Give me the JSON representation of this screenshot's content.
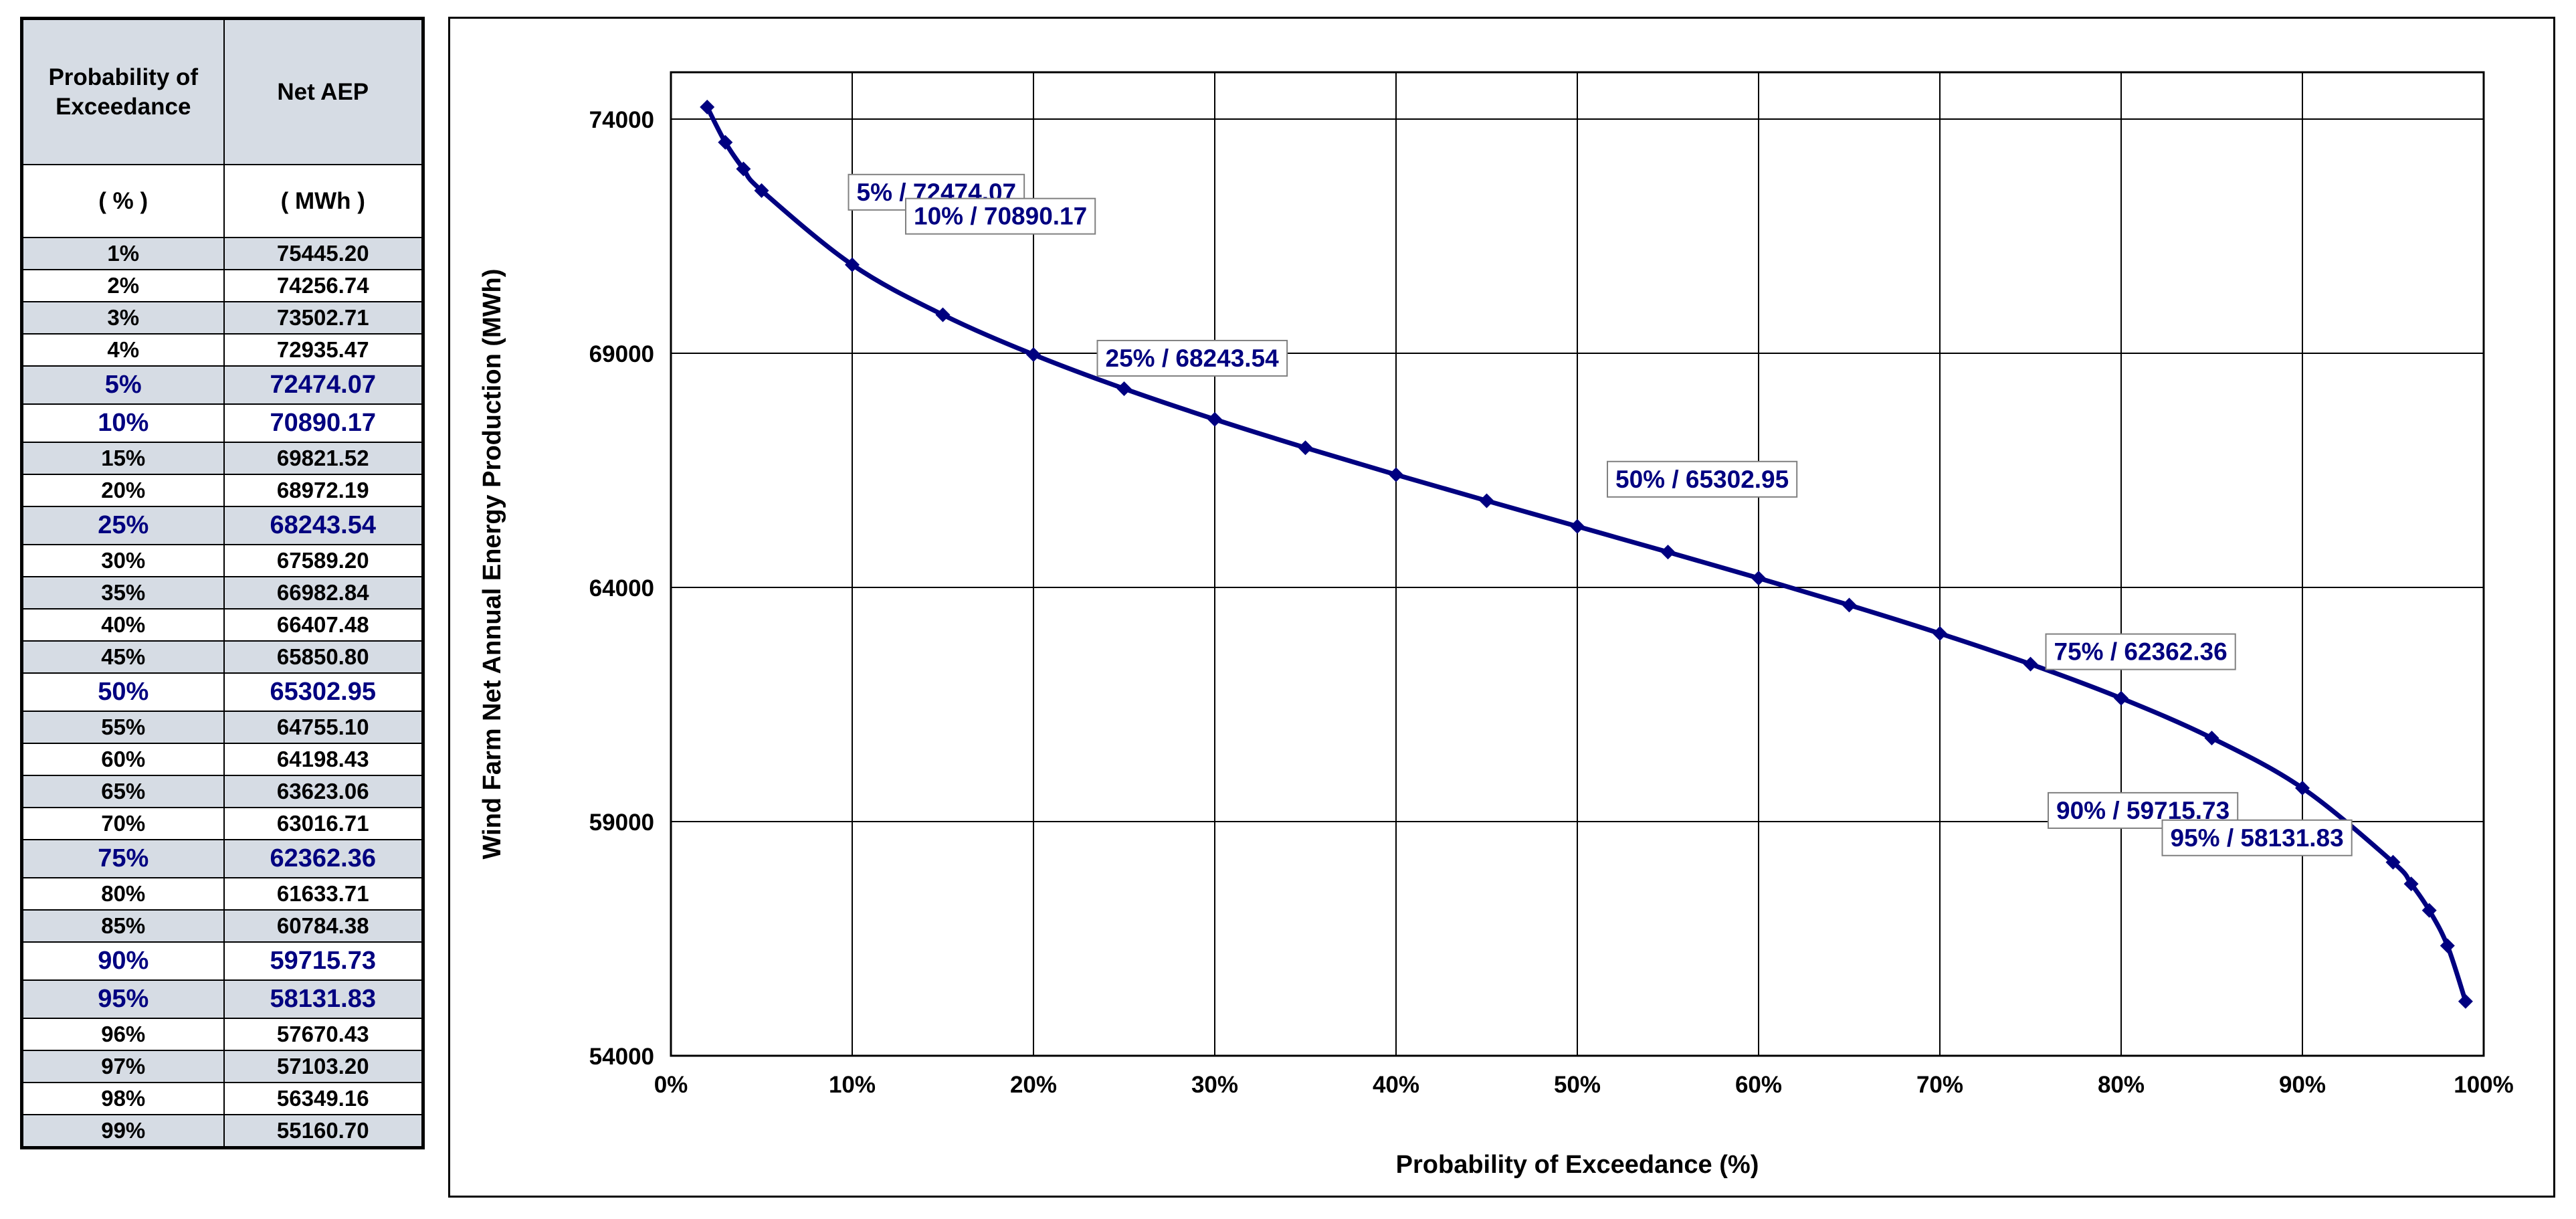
{
  "table": {
    "header_col1": "Probability of Exceedance",
    "header_col2": "Net AEP",
    "unit_col1": "( % )",
    "unit_col2": "( MWh )",
    "rows": [
      {
        "pe": "1%",
        "aep": "75445.20",
        "highlight": false
      },
      {
        "pe": "2%",
        "aep": "74256.74",
        "highlight": false
      },
      {
        "pe": "3%",
        "aep": "73502.71",
        "highlight": false
      },
      {
        "pe": "4%",
        "aep": "72935.47",
        "highlight": false
      },
      {
        "pe": "5%",
        "aep": "72474.07",
        "highlight": true
      },
      {
        "pe": "10%",
        "aep": "70890.17",
        "highlight": true
      },
      {
        "pe": "15%",
        "aep": "69821.52",
        "highlight": false
      },
      {
        "pe": "20%",
        "aep": "68972.19",
        "highlight": false
      },
      {
        "pe": "25%",
        "aep": "68243.54",
        "highlight": true
      },
      {
        "pe": "30%",
        "aep": "67589.20",
        "highlight": false
      },
      {
        "pe": "35%",
        "aep": "66982.84",
        "highlight": false
      },
      {
        "pe": "40%",
        "aep": "66407.48",
        "highlight": false
      },
      {
        "pe": "45%",
        "aep": "65850.80",
        "highlight": false
      },
      {
        "pe": "50%",
        "aep": "65302.95",
        "highlight": true
      },
      {
        "pe": "55%",
        "aep": "64755.10",
        "highlight": false
      },
      {
        "pe": "60%",
        "aep": "64198.43",
        "highlight": false
      },
      {
        "pe": "65%",
        "aep": "63623.06",
        "highlight": false
      },
      {
        "pe": "70%",
        "aep": "63016.71",
        "highlight": false
      },
      {
        "pe": "75%",
        "aep": "62362.36",
        "highlight": true
      },
      {
        "pe": "80%",
        "aep": "61633.71",
        "highlight": false
      },
      {
        "pe": "85%",
        "aep": "60784.38",
        "highlight": false
      },
      {
        "pe": "90%",
        "aep": "59715.73",
        "highlight": true
      },
      {
        "pe": "95%",
        "aep": "58131.83",
        "highlight": true
      },
      {
        "pe": "96%",
        "aep": "57670.43",
        "highlight": false
      },
      {
        "pe": "97%",
        "aep": "57103.20",
        "highlight": false
      },
      {
        "pe": "98%",
        "aep": "56349.16",
        "highlight": false
      },
      {
        "pe": "99%",
        "aep": "55160.70",
        "highlight": false
      }
    ]
  },
  "colors": {
    "series": "#000080",
    "table_shade": "#d6dce4",
    "grid": "#000000"
  },
  "chart_data": {
    "type": "line",
    "title": "",
    "xlabel": "Probability of Exceedance (%)",
    "ylabel": "Wind Farm Net Annual Energy Production (MWh)",
    "xlim": [
      0,
      100
    ],
    "ylim": [
      54000,
      75000
    ],
    "x_ticks": [
      0,
      10,
      20,
      30,
      40,
      50,
      60,
      70,
      80,
      90,
      100
    ],
    "x_tick_labels": [
      "0%",
      "10%",
      "20%",
      "30%",
      "40%",
      "50%",
      "60%",
      "70%",
      "80%",
      "90%",
      "100%"
    ],
    "y_ticks": [
      54000,
      59000,
      64000,
      69000,
      74000
    ],
    "y_tick_labels": [
      "54000",
      "59000",
      "64000",
      "69000",
      "74000"
    ],
    "grid": true,
    "legend": "none",
    "x": [
      2,
      3,
      4,
      5,
      10,
      15,
      20,
      25,
      30,
      35,
      40,
      45,
      50,
      55,
      60,
      65,
      70,
      75,
      80,
      85,
      90,
      95,
      96,
      97,
      98,
      99
    ],
    "y": [
      74256.74,
      73502.71,
      72935.47,
      72474.07,
      70890.17,
      69821.52,
      68972.19,
      68243.54,
      67589.2,
      66982.84,
      66407.48,
      65850.8,
      65302.95,
      64755.1,
      64198.43,
      63623.06,
      63016.71,
      62362.36,
      61633.71,
      60784.38,
      59715.73,
      58131.83,
      57670.43,
      57103.2,
      56349.16,
      55160.7
    ],
    "annotations": [
      {
        "text": "5% / 72474.07",
        "x": 5,
        "y": 72474.07
      },
      {
        "text": "10% / 70890.17",
        "x": 10,
        "y": 70890.17
      },
      {
        "text": "25% / 68243.54",
        "x": 25,
        "y": 68243.54
      },
      {
        "text": "50% / 65302.95",
        "x": 50,
        "y": 65302.95
      },
      {
        "text": "75% / 62362.36",
        "x": 75,
        "y": 62362.36
      },
      {
        "text": "90% / 59715.73",
        "x": 90,
        "y": 59715.73
      },
      {
        "text": "95% / 58131.83",
        "x": 95,
        "y": 58131.83
      }
    ]
  }
}
